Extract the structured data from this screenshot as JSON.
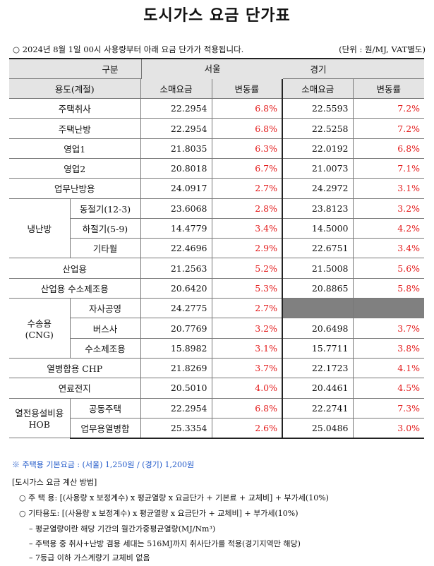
{
  "title": "도시가스 요금 단가표",
  "notice": "○ 2024년 8월 1일 00시 사용량부터 아래 요금 단가가 적용됩니다.",
  "unit": "(단위 : 원/MJ, VAT별도)",
  "headers": {
    "category": "구분",
    "usage": "용도(계절)",
    "seoul": "서울",
    "gyeonggi": "경기",
    "retail": "소매요금",
    "change": "변동률"
  },
  "rows": {
    "house_cook": {
      "label": "주택취사",
      "seoul_price": "22.2954",
      "seoul_change": "6.8%",
      "gg_price": "22.5593",
      "gg_change": "7.2%"
    },
    "house_heat": {
      "label": "주택난방",
      "seoul_price": "22.2954",
      "seoul_change": "6.8%",
      "gg_price": "22.5258",
      "gg_change": "7.2%"
    },
    "business1": {
      "label": "영업1",
      "seoul_price": "21.8035",
      "seoul_change": "6.3%",
      "gg_price": "22.0192",
      "gg_change": "6.8%"
    },
    "business2": {
      "label": "영업2",
      "seoul_price": "20.8018",
      "seoul_change": "6.7%",
      "gg_price": "21.0073",
      "gg_change": "7.1%"
    },
    "office_heat": {
      "label": "업무난방용",
      "seoul_price": "24.0917",
      "seoul_change": "2.7%",
      "gg_price": "24.2972",
      "gg_change": "3.1%"
    },
    "cooling_group": "냉난방",
    "cool_winter": {
      "label": "동절기(12-3)",
      "seoul_price": "23.6068",
      "seoul_change": "2.8%",
      "gg_price": "23.8123",
      "gg_change": "3.2%"
    },
    "cool_summer": {
      "label": "하절기(5-9)",
      "seoul_price": "14.4779",
      "seoul_change": "3.4%",
      "gg_price": "14.5000",
      "gg_change": "4.2%"
    },
    "cool_other": {
      "label": "기타월",
      "seoul_price": "22.4696",
      "seoul_change": "2.9%",
      "gg_price": "22.6751",
      "gg_change": "3.4%"
    },
    "industrial": {
      "label": "산업용",
      "seoul_price": "21.2563",
      "seoul_change": "5.2%",
      "gg_price": "21.5008",
      "gg_change": "5.6%"
    },
    "industrial_h2": {
      "label": "산업용 수소제조용",
      "seoul_price": "20.6420",
      "seoul_change": "5.3%",
      "gg_price": "20.8865",
      "gg_change": "5.8%"
    },
    "transport_group_line1": "수송용",
    "transport_group_line2": "(CNG)",
    "own_station": {
      "label": "자사공영",
      "seoul_price": "24.2775",
      "seoul_change": "2.7%"
    },
    "bus": {
      "label": "버스사",
      "seoul_price": "20.7769",
      "seoul_change": "3.2%",
      "gg_price": "20.6498",
      "gg_change": "3.7%"
    },
    "h2_production": {
      "label": "수소제조용",
      "seoul_price": "15.8982",
      "seoul_change": "3.1%",
      "gg_price": "15.7711",
      "gg_change": "3.8%"
    },
    "chp": {
      "label": "열병합용 CHP",
      "seoul_price": "21.8269",
      "seoul_change": "3.7%",
      "gg_price": "22.1723",
      "gg_change": "4.1%"
    },
    "fuel_cell": {
      "label": "연료전지",
      "seoul_price": "20.5010",
      "seoul_change": "4.0%",
      "gg_price": "20.4461",
      "gg_change": "4.5%"
    },
    "hob_group_line1": "열전용설비용",
    "hob_group_line2": "HOB",
    "hob_apartment": {
      "label": "공동주택",
      "seoul_price": "22.2954",
      "seoul_change": "6.8%",
      "gg_price": "22.2741",
      "gg_change": "7.3%"
    },
    "hob_business": {
      "label": "업무용열병합",
      "seoul_price": "25.3354",
      "seoul_change": "2.6%",
      "gg_price": "25.0486",
      "gg_change": "3.0%"
    }
  },
  "base_fee_note": "※ 주택용 기본요금 : (서울) 1,250원 / (경기) 1,200원",
  "method": {
    "heading": "[도시가스 요금 계산 방법]",
    "residential": "○ 주 택 용: [(사용량 x 보정계수) x 평균열량 x 요금단가 + 기본료 + 교체비] + 부가세(10%)",
    "other": "○ 기타용도: [(사용량 x 보정계수) x 평균열량 x 요금단가 + 교체비] + 부가세(10%)",
    "note1": "– 평균열량이란 해당 기간의 월간가중평균열량(MJ/Nm³)",
    "note2": "– 주택용 중 취사+난방 겸용 세대는 516MJ까지 취사단가를 적용(경기지역만 해당)",
    "note3": "– 7등급 이하 가스계량기 교체비 없음"
  },
  "colors": {
    "change_text": "#e31b1b",
    "header_bg": "#e4e4e4",
    "blank_cell": "#808080",
    "note_text": "#1f58c9"
  }
}
